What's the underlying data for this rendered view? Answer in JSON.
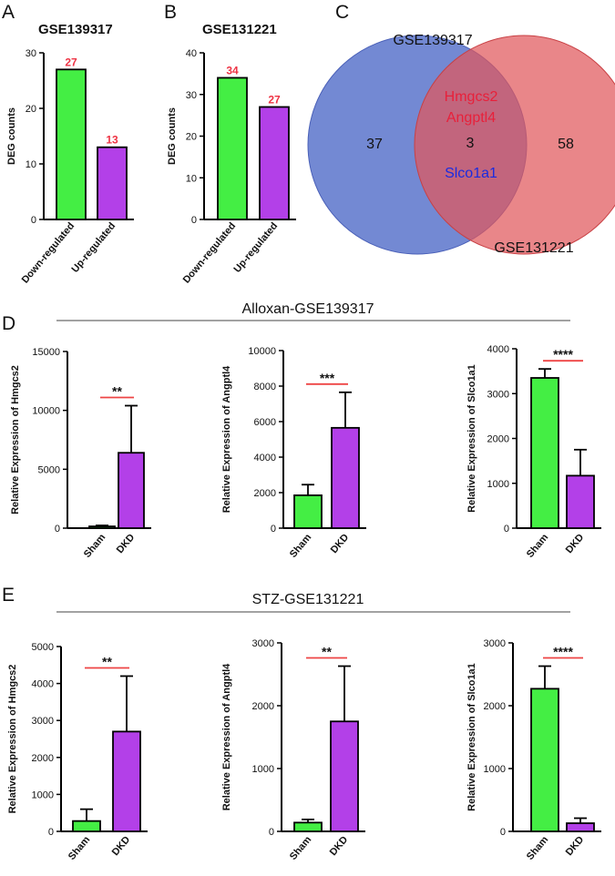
{
  "colors": {
    "green": "#44ee44",
    "purple": "#b340e8",
    "red_label": "#ee3344",
    "sig_line": "#ee4444",
    "venn_left": "#5b74cb",
    "venn_right": "#e0585c",
    "gene_red": "#e8203a",
    "gene_blue": "#1a2be0"
  },
  "panels": {
    "A": {
      "letter": "A",
      "title": "GSE139317"
    },
    "B": {
      "letter": "B",
      "title": "GSE131221"
    },
    "C": {
      "letter": "C"
    },
    "D": {
      "letter": "D",
      "section_title": "Alloxan-GSE139317"
    },
    "E": {
      "letter": "E",
      "section_title": "STZ-GSE131221"
    }
  },
  "venn": {
    "left_label": "GSE139317",
    "right_label": "GSE131221",
    "left_only": "37",
    "intersection": "3",
    "right_only": "58",
    "genes_up": [
      "Hmgcs2",
      "Angptl4"
    ],
    "genes_down": [
      "Slco1a1"
    ]
  },
  "chart_data": [
    {
      "id": "A",
      "type": "bar",
      "title": "GSE139317",
      "categories": [
        "Down-regulated",
        "Up-regulated"
      ],
      "values": [
        27,
        13
      ],
      "value_labels": [
        "27",
        "13"
      ],
      "ylabel": "DEG counts",
      "ylim": [
        0,
        30
      ],
      "yticks": [
        0,
        10,
        20,
        30
      ]
    },
    {
      "id": "B",
      "type": "bar",
      "title": "GSE131221",
      "categories": [
        "Down-regulated",
        "Up-regulated"
      ],
      "values": [
        34,
        27
      ],
      "value_labels": [
        "34",
        "27"
      ],
      "ylabel": "DEG counts",
      "ylim": [
        0,
        40
      ],
      "yticks": [
        0,
        10,
        20,
        30,
        40
      ]
    },
    {
      "id": "D1",
      "type": "bar",
      "categories": [
        "Sham",
        "DKD"
      ],
      "values": [
        150,
        6400
      ],
      "errors": [
        80,
        4000
      ],
      "ylabel": "Relative Expression of Hmgcs2",
      "ylim": [
        0,
        15000
      ],
      "yticks": [
        0,
        5000,
        10000,
        15000
      ],
      "significance": "**"
    },
    {
      "id": "D2",
      "type": "bar",
      "categories": [
        "Sham",
        "DKD"
      ],
      "values": [
        1850,
        5650
      ],
      "errors": [
        600,
        2000
      ],
      "ylabel": "Relative Expression of Angptl4",
      "ylim": [
        0,
        10000
      ],
      "yticks": [
        0,
        2000,
        4000,
        6000,
        8000,
        10000
      ],
      "significance": "***"
    },
    {
      "id": "D3",
      "type": "bar",
      "categories": [
        "Sham",
        "DKD"
      ],
      "values": [
        3350,
        1170
      ],
      "errors": [
        200,
        580
      ],
      "ylabel": "Relative Expression of Slco1a1",
      "ylim": [
        0,
        4000
      ],
      "yticks": [
        0,
        1000,
        2000,
        3000,
        4000
      ],
      "significance": "****"
    },
    {
      "id": "E1",
      "type": "bar",
      "categories": [
        "Sham",
        "DKD"
      ],
      "values": [
        280,
        2700
      ],
      "errors": [
        320,
        1500
      ],
      "ylabel": "Relative Expression of Hmgcs2",
      "ylim": [
        0,
        5000
      ],
      "yticks": [
        0,
        1000,
        2000,
        3000,
        4000,
        5000
      ],
      "significance": "**"
    },
    {
      "id": "E2",
      "type": "bar",
      "categories": [
        "Sham",
        "DKD"
      ],
      "values": [
        140,
        1750
      ],
      "errors": [
        50,
        880
      ],
      "ylabel": "Relative Expression of Angptl4",
      "ylim": [
        0,
        3000
      ],
      "yticks": [
        0,
        1000,
        2000,
        3000
      ],
      "significance": "**"
    },
    {
      "id": "E3",
      "type": "bar",
      "categories": [
        "Sham",
        "DKD"
      ],
      "values": [
        2270,
        130
      ],
      "errors": [
        360,
        80
      ],
      "ylabel": "Relative Expression of Slco1a1",
      "ylim": [
        0,
        3000
      ],
      "yticks": [
        0,
        1000,
        2000,
        3000
      ],
      "significance": "****"
    }
  ]
}
